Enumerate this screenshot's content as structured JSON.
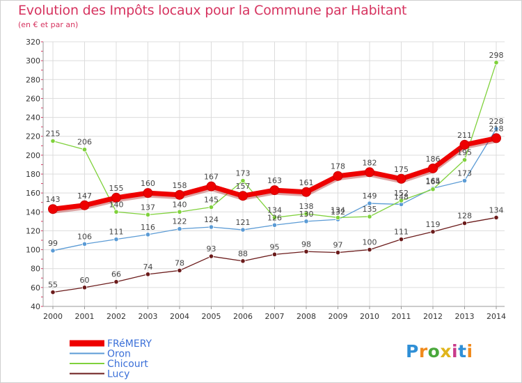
{
  "chart_data": {
    "type": "line",
    "title": "Evolution des Impôts locaux pour la Commune par Habitant",
    "subtitle": "(en € et par an)",
    "x": [
      "2000",
      "2001",
      "2002",
      "2003",
      "2004",
      "2005",
      "2006",
      "2007",
      "2008",
      "2009",
      "2010",
      "2011",
      "2012",
      "2013",
      "2014"
    ],
    "ylim": [
      40,
      320
    ],
    "yticks": [
      40,
      60,
      80,
      100,
      120,
      140,
      160,
      180,
      200,
      220,
      240,
      260,
      280,
      300,
      320
    ],
    "grid": true,
    "legend_position": "bottom-left",
    "series": [
      {
        "name": "FRéMERY",
        "color": "#ee0000",
        "values": [
          143,
          147,
          155,
          160,
          158,
          167,
          157,
          163,
          161,
          178,
          182,
          175,
          186,
          211,
          218
        ]
      },
      {
        "name": "Oron",
        "color": "#5b9bd5",
        "values": [
          99,
          106,
          111,
          116,
          122,
          124,
          121,
          126,
          130,
          132,
          149,
          148,
          165,
          173,
          228
        ]
      },
      {
        "name": "Chicourt",
        "color": "#7fd13b",
        "values": [
          215,
          206,
          140,
          137,
          140,
          145,
          173,
          134,
          138,
          134,
          135,
          152,
          164,
          195,
          298
        ]
      },
      {
        "name": "Lucy",
        "color": "#6b1b1b",
        "values": [
          55,
          60,
          66,
          74,
          78,
          93,
          88,
          95,
          98,
          97,
          100,
          111,
          119,
          128,
          134
        ]
      }
    ]
  },
  "logo": {
    "letters": [
      "P",
      "r",
      "o",
      "x",
      "i",
      "t",
      "i"
    ]
  }
}
